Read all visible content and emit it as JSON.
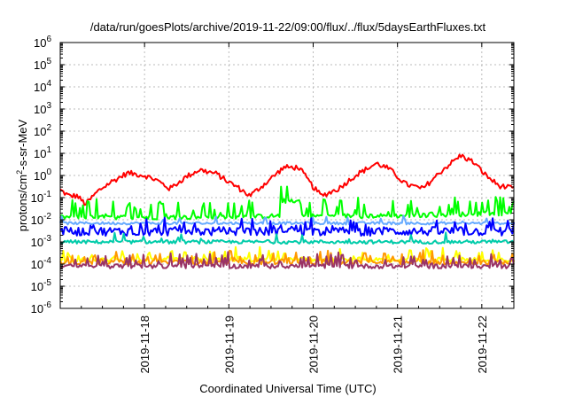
{
  "chart_data": {
    "type": "line",
    "title": "/data/run/goesPlots/archive/2019-11-22/09:00/flux/../flux/5daysEarthFluxes.txt",
    "xlabel": "Coordinated Universal Time (UTC)",
    "ylabel_base": "protons/cm",
    "ylabel_sup": "2",
    "ylabel_rest": "-s-sr-MeV",
    "y_scale": "log",
    "ylim_exp": [
      -6,
      6
    ],
    "y_tick_exponents": [
      -6,
      -5,
      -4,
      -3,
      -2,
      -1,
      0,
      1,
      2,
      3,
      4,
      5,
      6
    ],
    "y_tick_base": "10",
    "x_unit": "day",
    "xlim": [
      17.0,
      22.38
    ],
    "x_ticks": [
      {
        "value": 18,
        "label": "2019-11-18"
      },
      {
        "value": 19,
        "label": "2019-11-19"
      },
      {
        "value": 20,
        "label": "2019-11-20"
      },
      {
        "value": 21,
        "label": "2019-11-21"
      },
      {
        "value": 22,
        "label": "2019-11-22"
      }
    ],
    "grid": true,
    "legend": "none",
    "series": [
      {
        "color": "#ff0000",
        "base": [
          [
            17.0,
            0.22
          ],
          [
            17.1,
            0.12
          ],
          [
            17.2,
            0.12
          ],
          [
            17.3,
            0.05
          ],
          [
            17.45,
            0.2
          ],
          [
            17.6,
            0.5
          ],
          [
            17.8,
            1.3
          ],
          [
            18.0,
            1.0
          ],
          [
            18.15,
            0.6
          ],
          [
            18.3,
            0.25
          ],
          [
            18.5,
            0.9
          ],
          [
            18.65,
            1.8
          ],
          [
            18.85,
            1.2
          ],
          [
            19.0,
            0.5
          ],
          [
            19.1,
            0.3
          ],
          [
            19.25,
            0.12
          ],
          [
            19.45,
            0.5
          ],
          [
            19.65,
            2.3
          ],
          [
            19.83,
            2.3
          ],
          [
            20.0,
            0.3
          ],
          [
            20.1,
            0.12
          ],
          [
            20.3,
            0.25
          ],
          [
            20.5,
            1.0
          ],
          [
            20.75,
            3.5
          ],
          [
            20.9,
            2.0
          ],
          [
            21.1,
            0.4
          ],
          [
            21.3,
            0.25
          ],
          [
            21.55,
            2.0
          ],
          [
            21.75,
            8.0
          ],
          [
            21.9,
            4.0
          ],
          [
            22.05,
            1.0
          ],
          [
            22.2,
            0.35
          ],
          [
            22.38,
            0.25
          ]
        ],
        "noise": 0.12,
        "spikes": 0,
        "spike_amp": 1
      },
      {
        "color": "#00ff00",
        "base": [
          [
            17.0,
            0.013
          ],
          [
            18.0,
            0.013
          ],
          [
            19.0,
            0.013
          ],
          [
            19.6,
            0.015
          ],
          [
            19.62,
            0.07
          ],
          [
            19.85,
            0.07
          ],
          [
            19.87,
            0.015
          ],
          [
            21.0,
            0.015
          ],
          [
            22.38,
            0.02
          ]
        ],
        "noise": 0.1,
        "spikes": 0.22,
        "spike_amp": 6
      },
      {
        "color": "#66aaff",
        "base": [
          [
            17.0,
            0.007
          ],
          [
            22.38,
            0.007
          ]
        ],
        "noise": 0.06,
        "spikes": 0.08,
        "spike_amp": 2
      },
      {
        "color": "#0000ff",
        "base": [
          [
            17.0,
            0.003
          ],
          [
            19.6,
            0.003
          ],
          [
            19.62,
            0.0038
          ],
          [
            19.85,
            0.0038
          ],
          [
            19.87,
            0.003
          ],
          [
            22.38,
            0.003
          ]
        ],
        "noise": 0.2,
        "spikes": 0.12,
        "spike_amp": 3
      },
      {
        "color": "#00ccaa",
        "base": [
          [
            17.0,
            0.001
          ],
          [
            22.38,
            0.001
          ]
        ],
        "noise": 0.08,
        "spikes": 0.06,
        "spike_amp": 2.5
      },
      {
        "color": "#ffff00",
        "base": [
          [
            17.0,
            0.00016
          ],
          [
            22.38,
            0.00016
          ]
        ],
        "noise": 0.1,
        "spikes": 0.2,
        "spike_amp": 3
      },
      {
        "color": "#ff9900",
        "base": [
          [
            17.0,
            0.00012
          ],
          [
            22.38,
            0.00012
          ]
        ],
        "noise": 0.1,
        "spikes": 0.2,
        "spike_amp": 3
      },
      {
        "color": "#993366",
        "base": [
          [
            17.0,
            8e-05
          ],
          [
            22.38,
            8e-05
          ]
        ],
        "noise": 0.1,
        "spikes": 0.2,
        "spike_amp": 3.5
      }
    ]
  }
}
